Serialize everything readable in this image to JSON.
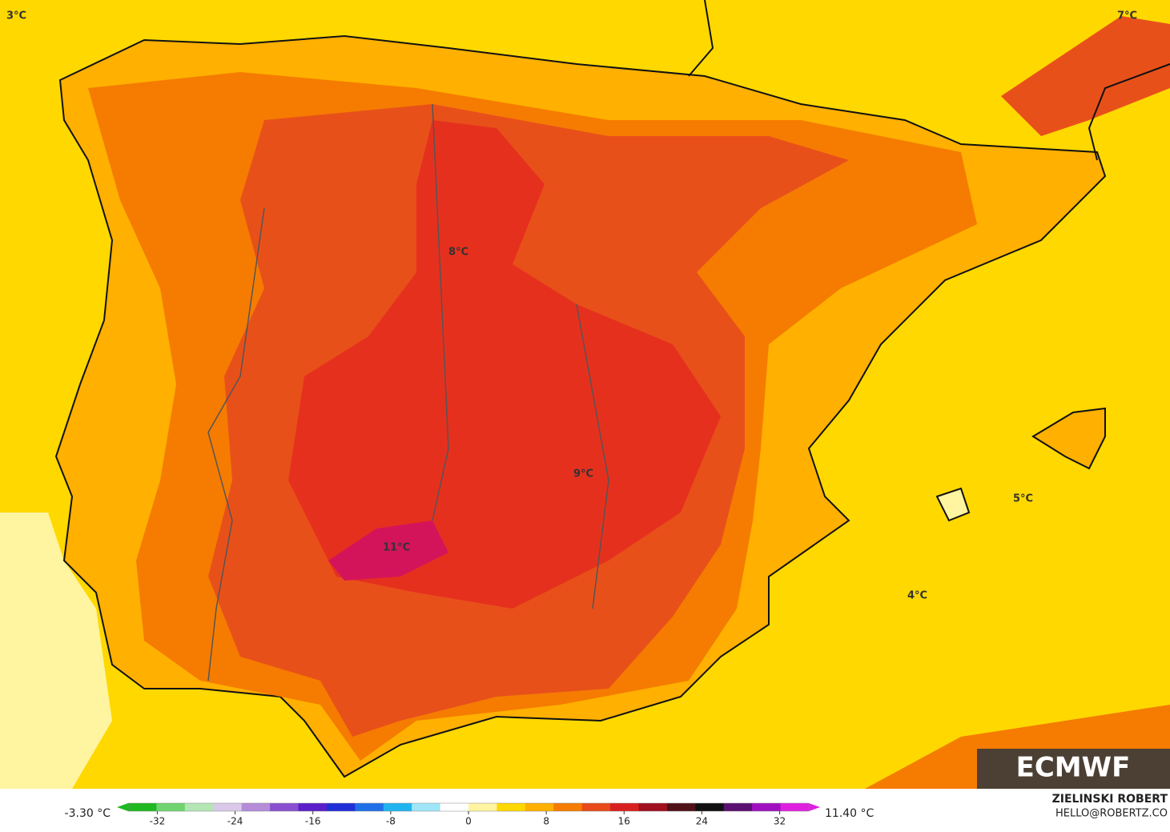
{
  "map": {
    "labels": [
      "3°C",
      "7°C",
      "8°C",
      "9°C",
      "11°C",
      "5°C",
      "4°C"
    ],
    "logo": "ECMWF"
  },
  "legend": {
    "min_label": "-3.30 °C",
    "max_label": "11.40 °C",
    "lim": [
      -35,
      35
    ],
    "ticks": [
      -32,
      -24,
      -16,
      -8,
      0,
      8,
      16,
      24,
      32
    ],
    "colors": [
      "#1fb81f",
      "#6fd46f",
      "#b4e6b4",
      "#d9c8e8",
      "#b48cd8",
      "#8a4fd0",
      "#5a1fc8",
      "#1f2fd8",
      "#1f6fe8",
      "#1fb4f0",
      "#9fe6f8",
      "#ffffff",
      "#fff4a0",
      "#ffd800",
      "#ffb000",
      "#f57c00",
      "#e84a1a",
      "#d8201e",
      "#a0101e",
      "#501018",
      "#101010",
      "#5a1070",
      "#a010c0",
      "#e020e0"
    ]
  },
  "credit": {
    "name": "ZIELINSKI ROBERT",
    "email": "HELLO@ROBERTZ.CO"
  }
}
